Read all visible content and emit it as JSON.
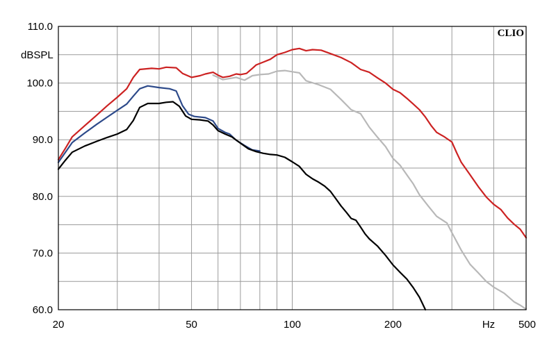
{
  "chart_data": {
    "type": "line",
    "title": "",
    "brand": "CLIO",
    "xlabel": "Hz",
    "ylabel": "dBSPL",
    "x_scale": "log",
    "xlim": [
      20,
      500
    ],
    "ylim": [
      60,
      110
    ],
    "grid": true,
    "legend": "none",
    "y_ticks": [
      {
        "value": 60,
        "label": "60.0"
      },
      {
        "value": 70,
        "label": "70.0"
      },
      {
        "value": 80,
        "label": "80.0"
      },
      {
        "value": 90,
        "label": "90.0"
      },
      {
        "value": 100,
        "label": "100.0"
      },
      {
        "value": 110,
        "label": "110.0"
      }
    ],
    "x_ticks": [
      {
        "value": 20,
        "label": "20"
      },
      {
        "value": 50,
        "label": "50"
      },
      {
        "value": 100,
        "label": "100"
      },
      {
        "value": 200,
        "label": "200"
      },
      {
        "value": 500,
        "label": "500"
      }
    ],
    "x_minor_grid": [
      30,
      40,
      60,
      70,
      80,
      90,
      300,
      400
    ],
    "series": [
      {
        "color": "#cc2222",
        "points": [
          [
            20,
            86.5
          ],
          [
            21,
            88.5
          ],
          [
            22,
            90.5
          ],
          [
            24,
            92.5
          ],
          [
            26,
            94.3
          ],
          [
            28,
            96.0
          ],
          [
            30,
            97.5
          ],
          [
            32,
            99.0
          ],
          [
            33.5,
            101.0
          ],
          [
            35,
            102.4
          ],
          [
            38,
            102.6
          ],
          [
            40,
            102.5
          ],
          [
            42,
            102.8
          ],
          [
            45,
            102.7
          ],
          [
            47,
            101.7
          ],
          [
            50,
            101.0
          ],
          [
            53,
            101.3
          ],
          [
            55,
            101.6
          ],
          [
            58,
            101.9
          ],
          [
            60,
            101.4
          ],
          [
            62,
            101.0
          ],
          [
            65,
            101.2
          ],
          [
            68,
            101.6
          ],
          [
            70,
            101.5
          ],
          [
            73,
            101.7
          ],
          [
            76,
            102.6
          ],
          [
            78,
            103.2
          ],
          [
            82,
            103.7
          ],
          [
            86,
            104.2
          ],
          [
            90,
            105.0
          ],
          [
            95,
            105.4
          ],
          [
            100,
            105.9
          ],
          [
            105,
            106.1
          ],
          [
            110,
            105.7
          ],
          [
            115,
            105.9
          ],
          [
            122,
            105.8
          ],
          [
            130,
            105.2
          ],
          [
            140,
            104.5
          ],
          [
            150,
            103.6
          ],
          [
            160,
            102.4
          ],
          [
            170,
            101.9
          ],
          [
            180,
            100.9
          ],
          [
            190,
            100.0
          ],
          [
            200,
            98.9
          ],
          [
            210,
            98.3
          ],
          [
            220,
            97.3
          ],
          [
            230,
            96.3
          ],
          [
            240,
            95.3
          ],
          [
            250,
            94.0
          ],
          [
            260,
            92.5
          ],
          [
            270,
            91.3
          ],
          [
            285,
            90.5
          ],
          [
            300,
            89.6
          ],
          [
            310,
            87.7
          ],
          [
            320,
            86.0
          ],
          [
            340,
            83.8
          ],
          [
            360,
            81.7
          ],
          [
            380,
            79.9
          ],
          [
            400,
            78.6
          ],
          [
            420,
            77.7
          ],
          [
            440,
            76.2
          ],
          [
            460,
            75.1
          ],
          [
            480,
            74.2
          ],
          [
            500,
            72.7
          ]
        ]
      },
      {
        "color": "#b8b8b8",
        "points": [
          [
            58,
            101.4
          ],
          [
            60,
            101.0
          ],
          [
            62,
            100.6
          ],
          [
            65,
            100.8
          ],
          [
            68,
            101.0
          ],
          [
            72,
            100.5
          ],
          [
            76,
            101.3
          ],
          [
            80,
            101.5
          ],
          [
            85,
            101.6
          ],
          [
            90,
            102.1
          ],
          [
            95,
            102.2
          ],
          [
            100,
            102.0
          ],
          [
            105,
            101.8
          ],
          [
            110,
            100.4
          ],
          [
            120,
            99.7
          ],
          [
            130,
            98.9
          ],
          [
            140,
            97.1
          ],
          [
            150,
            95.3
          ],
          [
            160,
            94.6
          ],
          [
            170,
            92.2
          ],
          [
            180,
            90.4
          ],
          [
            190,
            88.8
          ],
          [
            200,
            86.7
          ],
          [
            210,
            85.5
          ],
          [
            220,
            83.8
          ],
          [
            230,
            82.2
          ],
          [
            240,
            80.3
          ],
          [
            255,
            78.3
          ],
          [
            270,
            76.5
          ],
          [
            290,
            75.3
          ],
          [
            300,
            73.6
          ],
          [
            320,
            70.5
          ],
          [
            340,
            68.0
          ],
          [
            360,
            66.5
          ],
          [
            380,
            65.0
          ],
          [
            400,
            64.0
          ],
          [
            430,
            62.9
          ],
          [
            460,
            61.4
          ],
          [
            480,
            60.8
          ],
          [
            500,
            60.1
          ]
        ]
      },
      {
        "color": "#2d4a8a",
        "points": [
          [
            20,
            86.0
          ],
          [
            22,
            89.5
          ],
          [
            24,
            91.2
          ],
          [
            26,
            92.7
          ],
          [
            28,
            94.0
          ],
          [
            30,
            95.2
          ],
          [
            32,
            96.3
          ],
          [
            33.5,
            97.7
          ],
          [
            35,
            99.0
          ],
          [
            37,
            99.5
          ],
          [
            40,
            99.2
          ],
          [
            43,
            99.0
          ],
          [
            45,
            98.6
          ],
          [
            47,
            96.0
          ],
          [
            49,
            94.5
          ],
          [
            51,
            94.1
          ],
          [
            55,
            93.9
          ],
          [
            58,
            93.3
          ],
          [
            60,
            92.0
          ],
          [
            63,
            91.3
          ],
          [
            65,
            91.0
          ],
          [
            68,
            89.9
          ],
          [
            72,
            89.0
          ],
          [
            76,
            88.2
          ],
          [
            80,
            88.0
          ]
        ]
      },
      {
        "color": "#000000",
        "points": [
          [
            20,
            84.8
          ],
          [
            21,
            86.4
          ],
          [
            22,
            87.8
          ],
          [
            24,
            88.9
          ],
          [
            26,
            89.7
          ],
          [
            28,
            90.4
          ],
          [
            30,
            91.0
          ],
          [
            32,
            91.8
          ],
          [
            33.5,
            93.4
          ],
          [
            35,
            95.7
          ],
          [
            37,
            96.4
          ],
          [
            40,
            96.4
          ],
          [
            42,
            96.6
          ],
          [
            44,
            96.7
          ],
          [
            46,
            95.9
          ],
          [
            48,
            94.2
          ],
          [
            50,
            93.6
          ],
          [
            53,
            93.5
          ],
          [
            56,
            93.3
          ],
          [
            58,
            92.6
          ],
          [
            60,
            91.6
          ],
          [
            63,
            91.0
          ],
          [
            66,
            90.5
          ],
          [
            70,
            89.4
          ],
          [
            74,
            88.4
          ],
          [
            78,
            87.9
          ],
          [
            82,
            87.6
          ],
          [
            86,
            87.4
          ],
          [
            90,
            87.3
          ],
          [
            95,
            86.9
          ],
          [
            100,
            86.1
          ],
          [
            105,
            85.3
          ],
          [
            110,
            83.9
          ],
          [
            115,
            83.1
          ],
          [
            120,
            82.5
          ],
          [
            125,
            81.8
          ],
          [
            130,
            80.9
          ],
          [
            135,
            79.6
          ],
          [
            140,
            78.3
          ],
          [
            145,
            77.2
          ],
          [
            150,
            76.1
          ],
          [
            155,
            75.8
          ],
          [
            160,
            74.6
          ],
          [
            165,
            73.4
          ],
          [
            170,
            72.5
          ],
          [
            180,
            71.2
          ],
          [
            190,
            69.6
          ],
          [
            200,
            67.9
          ],
          [
            210,
            66.6
          ],
          [
            220,
            65.4
          ],
          [
            230,
            63.9
          ],
          [
            240,
            62.2
          ],
          [
            250,
            60.0
          ]
        ]
      }
    ]
  }
}
